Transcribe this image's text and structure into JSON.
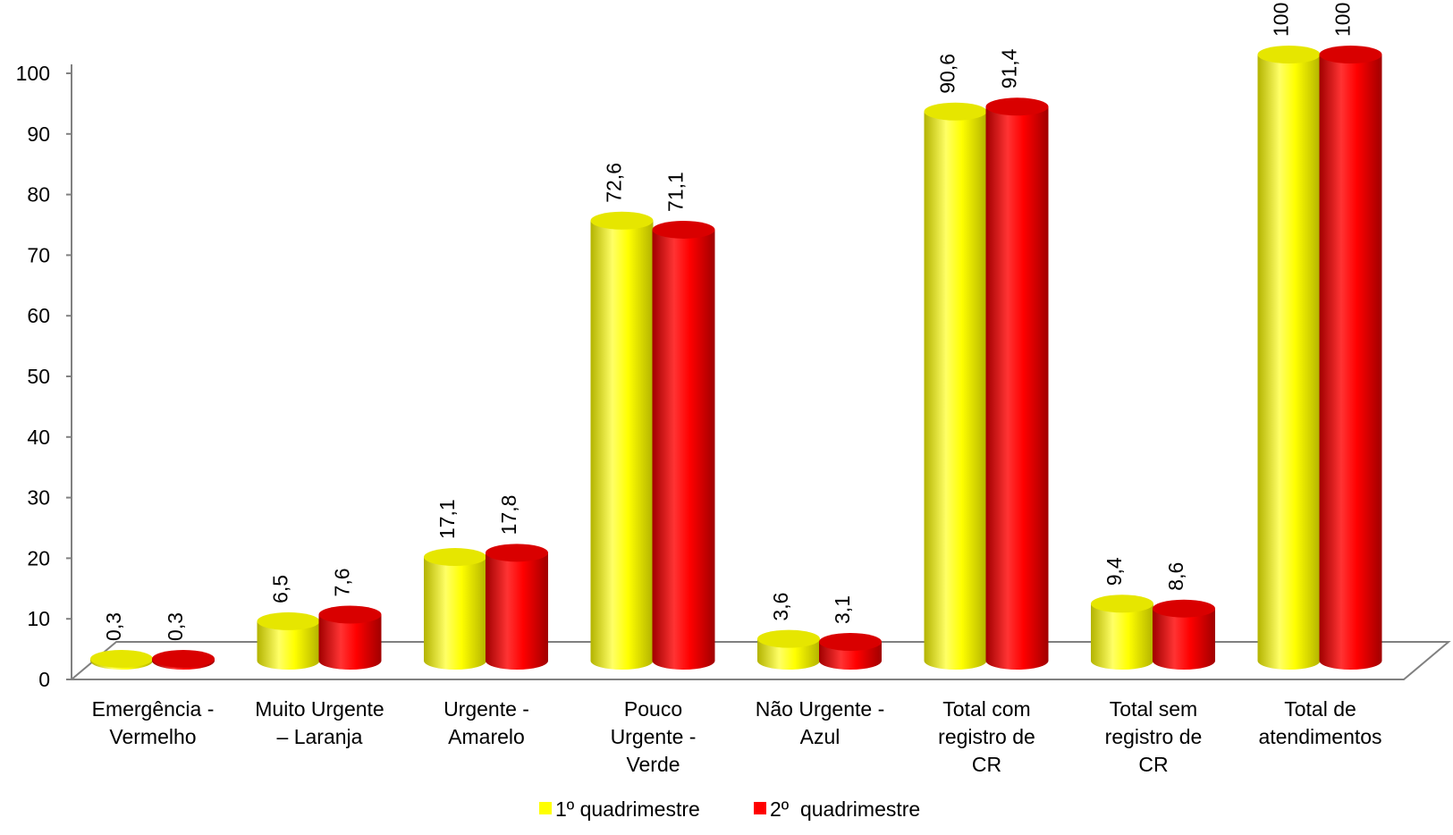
{
  "chart_data": {
    "type": "bar",
    "style": "3d-cylinder",
    "title": "",
    "xlabel": "",
    "ylabel": "",
    "ylim": [
      0,
      100
    ],
    "y_ticks": [
      0,
      10,
      20,
      30,
      40,
      50,
      60,
      70,
      80,
      90,
      100
    ],
    "grid": false,
    "legend_position": "bottom",
    "categories": [
      [
        "Emergência -",
        "Vermelho"
      ],
      [
        "Muito Urgente",
        "– Laranja"
      ],
      [
        "Urgente -",
        "Amarelo"
      ],
      [
        "Pouco",
        "Urgente -",
        "Verde"
      ],
      [
        "Não Urgente -",
        "Azul"
      ],
      [
        "Total com",
        "registro de",
        "CR"
      ],
      [
        "Total sem",
        "registro de",
        "CR"
      ],
      [
        "Total de",
        "atendimentos"
      ]
    ],
    "series": [
      {
        "name": "1º quadrimestre",
        "color": "#ffff00",
        "values": [
          0.3,
          6.5,
          17.1,
          72.6,
          3.6,
          90.6,
          9.4,
          100
        ],
        "labels": [
          "0,3",
          "6,5",
          "17,1",
          "72,6",
          "3,6",
          "90,6",
          "9,4",
          "100"
        ]
      },
      {
        "name": "2º  quadrimestre",
        "color": "#ff0000",
        "values": [
          0.3,
          7.6,
          17.8,
          71.1,
          3.1,
          91.4,
          8.6,
          100
        ],
        "labels": [
          "0,3",
          "7,6",
          "17,8",
          "71,1",
          "3,1",
          "91,4",
          "8,6",
          "100"
        ]
      }
    ]
  }
}
